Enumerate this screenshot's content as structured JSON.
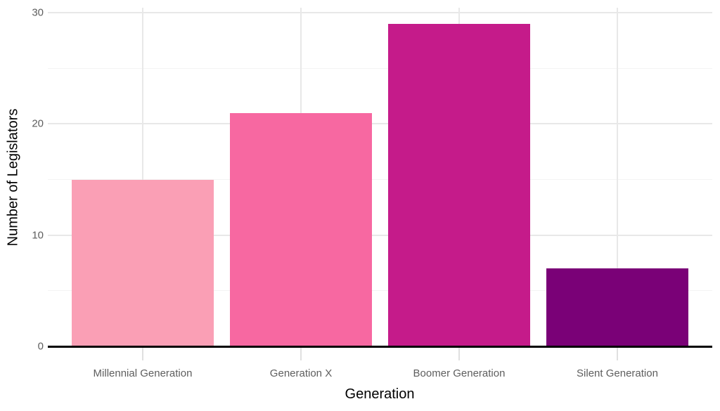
{
  "chart_data": {
    "type": "bar",
    "title": "",
    "categories": [
      "Millennial Generation",
      "Generation X",
      "Boomer Generation",
      "Silent Generation"
    ],
    "values": [
      15,
      21,
      29,
      7
    ],
    "bar_colors": [
      "#FA9FB5",
      "#F768A1",
      "#C51B8A",
      "#7A0177"
    ],
    "xlabel": "Generation",
    "ylabel": "Number of Legislators",
    "ylim": [
      0,
      30
    ],
    "y_major_ticks": [
      0,
      10,
      20,
      30
    ],
    "y_minor_ticks": [
      5,
      15,
      25
    ],
    "legend": "none",
    "grid": "horizontal major+minor, vertical at category centers",
    "bar_width_ratio": 0.9
  },
  "style": {
    "background_color": "#FFFFFF",
    "grid_major_color": "#E8E8E8",
    "grid_minor_color": "#F3F3F3",
    "axis_line_color": "#000000",
    "tick_mark_color": "#E0E0E0",
    "tick_label_color": "#5E5E5E",
    "axis_title_color": "#000000"
  }
}
